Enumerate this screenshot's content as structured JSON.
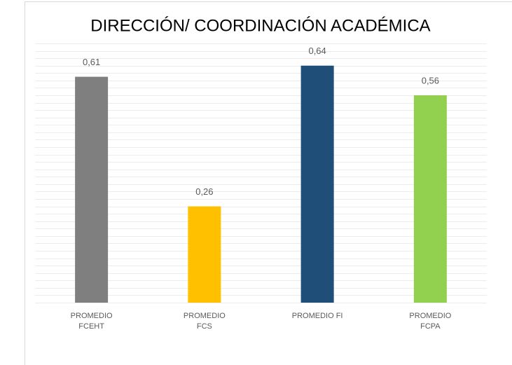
{
  "chart_data": {
    "type": "bar",
    "title": "DIRECCIÓN/ COORDINACIÓN ACADÉMICA",
    "categories": [
      "PROMEDIO FCEHT",
      "PROMEDIO FCS",
      "PROMEDIO FI",
      "PROMEDIO FCPA"
    ],
    "values": [
      0.61,
      0.26,
      0.64,
      0.56
    ],
    "value_labels": [
      "0,61",
      "0,26",
      "0,64",
      "0,56"
    ],
    "colors": [
      "#7f7f7f",
      "#ffc000",
      "#1f4e79",
      "#92d050"
    ],
    "ylim": [
      0,
      0.7
    ],
    "yticks": [
      0,
      0.02,
      0.04,
      0.06,
      0.08,
      0.1,
      0.12,
      0.14,
      0.16,
      0.18,
      0.2,
      0.22,
      0.24,
      0.26,
      0.28,
      0.3,
      0.32,
      0.34,
      0.36,
      0.38,
      0.4,
      0.42,
      0.44,
      0.46,
      0.48,
      0.5,
      0.52,
      0.54,
      0.56,
      0.58,
      0.6,
      0.62,
      0.64,
      0.66,
      0.68,
      0.7
    ],
    "grid": true
  }
}
